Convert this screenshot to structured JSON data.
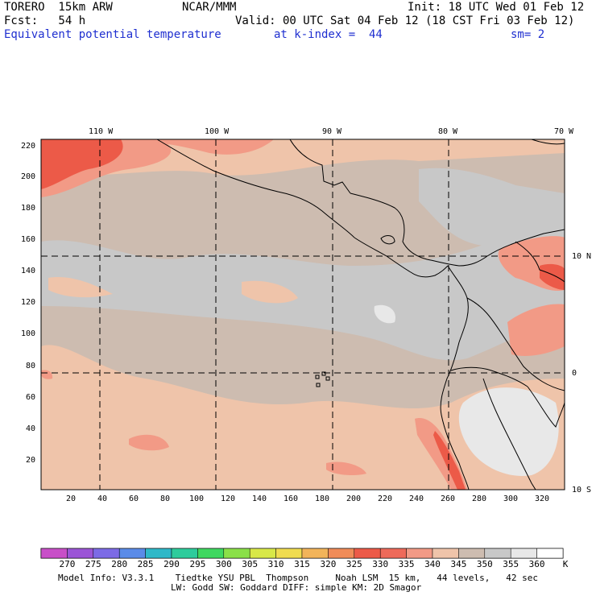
{
  "header": {
    "model": "TORERO  15km ARW",
    "org": "NCAR/MMM",
    "init": "Init: 18 UTC Wed 01 Feb 12",
    "fcst": "Fcst:   54 h",
    "valid": "Valid: 00 UTC Sat 04 Feb 12 (18 CST Fri 03 Feb 12)",
    "field": "Equivalent potential temperature",
    "level": "at k-index =  44",
    "smooth": "sm= 2"
  },
  "map": {
    "lon_labels": [
      "110 W",
      "100 W",
      "90 W",
      "80 W",
      "70 W"
    ],
    "lat_labels": [
      "10 N",
      "0",
      "10 S"
    ],
    "x_ticks": [
      "20",
      "40",
      "60",
      "80",
      "100",
      "120",
      "140",
      "160",
      "180",
      "200",
      "220",
      "240",
      "260",
      "280",
      "300",
      "320"
    ],
    "y_ticks": [
      "220",
      "200",
      "180",
      "160",
      "140",
      "120",
      "100",
      "80",
      "60",
      "40",
      "20"
    ]
  },
  "colorbar": {
    "labels": [
      "270",
      "275",
      "280",
      "285",
      "290",
      "295",
      "300",
      "305",
      "310",
      "315",
      "320",
      "325",
      "330",
      "335",
      "340",
      "345",
      "350",
      "355",
      "360"
    ],
    "unit": "K",
    "colors": [
      "#c84fc8",
      "#9b55d6",
      "#7c6be6",
      "#5a8be8",
      "#2fb8c8",
      "#2ecc9c",
      "#3fd860",
      "#8ae048",
      "#d8e848",
      "#f0dc50",
      "#f2b45a",
      "#f08c58",
      "#ec5a48",
      "#ee6a5a",
      "#f29a86",
      "#efc4aa",
      "#cdbcb0",
      "#c8c8c8",
      "#e8e8e8",
      "#ffffff"
    ]
  },
  "footer": {
    "line1": "Model Info: V3.3.1    Tiedtke YSU PBL  Thompson     Noah LSM  15 km,   44 levels,   42 sec",
    "line2": "LW: Godd SW: Goddard DIFF: simple KM: 2D Smagor"
  }
}
